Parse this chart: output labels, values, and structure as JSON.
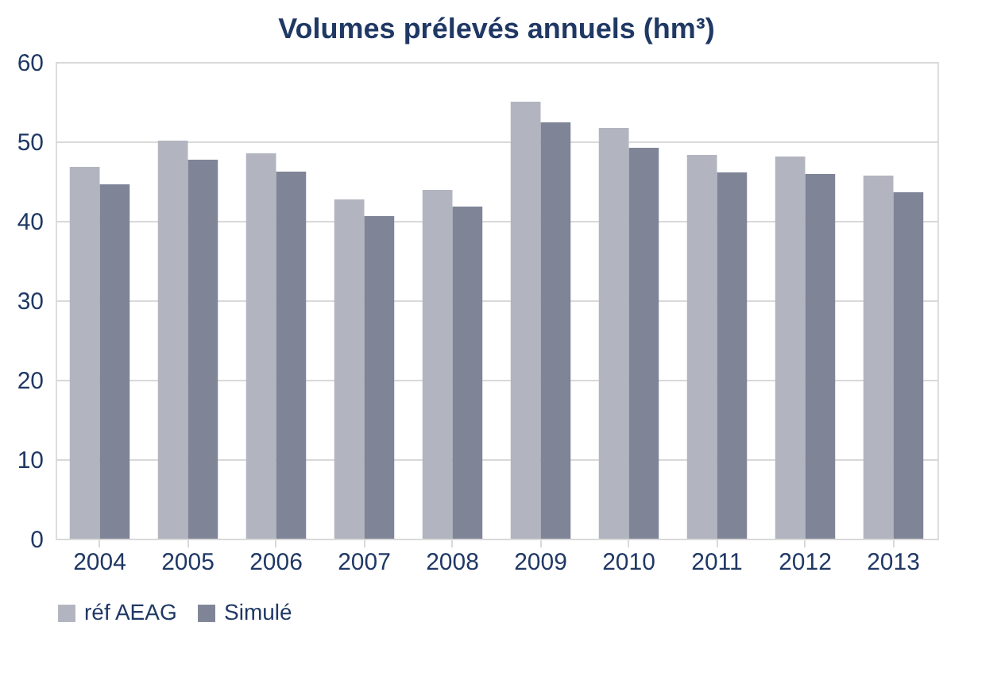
{
  "chart_data": {
    "type": "bar",
    "title": "Volumes prélevés annuels (hm³)",
    "categories": [
      "2004",
      "2005",
      "2006",
      "2007",
      "2008",
      "2009",
      "2010",
      "2011",
      "2012",
      "2013"
    ],
    "series": [
      {
        "name": "réf AEAG",
        "color": "#b2b5bf",
        "values": [
          46.8,
          50.1,
          48.5,
          42.7,
          43.9,
          55.0,
          51.7,
          48.3,
          48.1,
          45.7
        ]
      },
      {
        "name": "Simulé",
        "color": "#7f8597",
        "values": [
          44.6,
          47.7,
          46.2,
          40.6,
          41.8,
          52.4,
          49.2,
          46.1,
          45.9,
          43.6
        ]
      }
    ],
    "ylim": [
      0,
      60
    ],
    "yticks": [
      0,
      10,
      20,
      30,
      40,
      50,
      60
    ],
    "grid": "y",
    "legend": "bottom"
  }
}
